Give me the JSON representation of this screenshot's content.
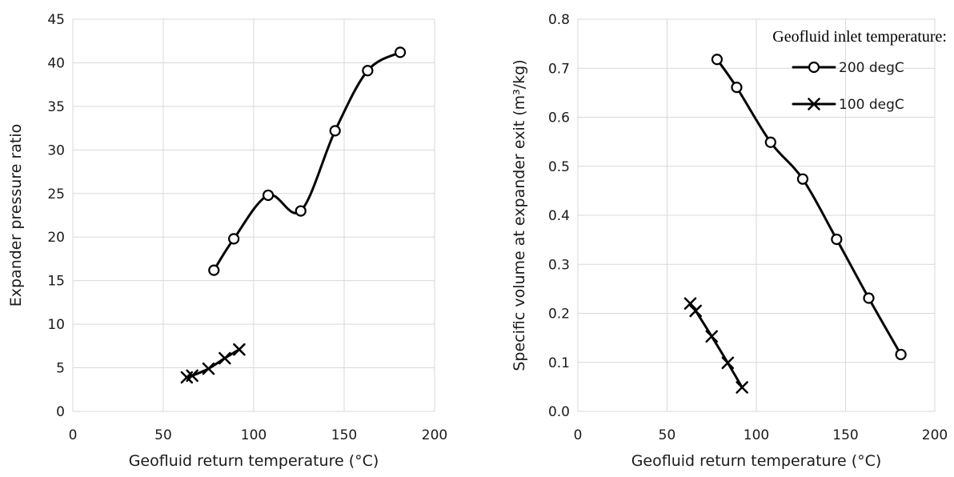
{
  "chart_data": [
    {
      "type": "line",
      "title": "",
      "xlabel": "Geofluid return temperature (°C)",
      "ylabel": "Expander pressure ratio",
      "xlim": [
        0,
        200
      ],
      "ylim": [
        0,
        45
      ],
      "xticks": [
        0,
        50,
        100,
        150,
        200
      ],
      "yticks": [
        0,
        5,
        10,
        15,
        20,
        25,
        30,
        35,
        40,
        45
      ],
      "xtick_labels": [
        "0",
        "50",
        "100",
        "150",
        "200"
      ],
      "ytick_labels": [
        "0",
        "5",
        "10",
        "15",
        "20",
        "25",
        "30",
        "35",
        "40",
        "45"
      ],
      "grid": true,
      "smooth": true,
      "series": [
        {
          "name": "200 degC",
          "marker": "circle",
          "x": [
            78,
            89,
            108,
            126,
            145,
            163,
            181
          ],
          "y": [
            16.2,
            19.8,
            24.8,
            23.0,
            32.2,
            39.1,
            41.2
          ]
        },
        {
          "name": "100 degC",
          "marker": "x",
          "x": [
            63,
            66,
            75,
            84,
            92
          ],
          "y": [
            3.9,
            4.1,
            4.9,
            6.1,
            7.1
          ]
        }
      ]
    },
    {
      "type": "line",
      "title": "",
      "xlabel": "Geofluid return temperature (°C)",
      "ylabel": "Specific volume at expander exit (m³/kg)",
      "xlim": [
        0,
        200
      ],
      "ylim": [
        0.0,
        0.8
      ],
      "xticks": [
        0,
        50,
        100,
        150,
        200
      ],
      "yticks": [
        0.0,
        0.1,
        0.2,
        0.3,
        0.4,
        0.5,
        0.6,
        0.7,
        0.8
      ],
      "xtick_labels": [
        "0",
        "50",
        "100",
        "150",
        "200"
      ],
      "ytick_labels": [
        "0.0",
        "0.1",
        "0.2",
        "0.3",
        "0.4",
        "0.5",
        "0.6",
        "0.7",
        "0.8"
      ],
      "grid": true,
      "smooth": true,
      "legend": {
        "title": "Geofluid inlet temperature:",
        "placement": "top-right",
        "entries": [
          "200 degC",
          "100 degC"
        ]
      },
      "series": [
        {
          "name": "200 degC",
          "marker": "circle",
          "x": [
            78,
            89,
            108,
            126,
            145,
            163,
            181
          ],
          "y": [
            0.718,
            0.661,
            0.549,
            0.474,
            0.351,
            0.231,
            0.116
          ]
        },
        {
          "name": "100 degC",
          "marker": "x",
          "x": [
            63,
            66,
            75,
            84,
            92
          ],
          "y": [
            0.22,
            0.205,
            0.153,
            0.099,
            0.049
          ]
        }
      ]
    }
  ]
}
